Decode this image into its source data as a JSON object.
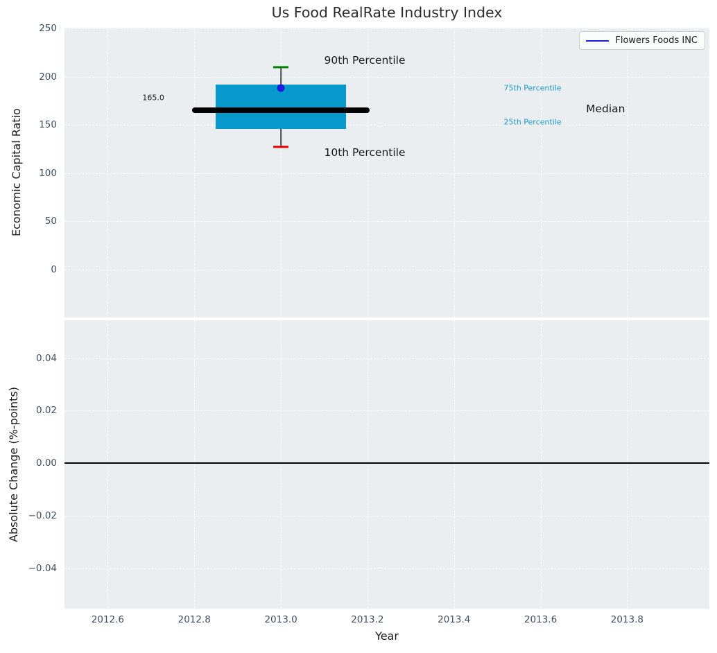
{
  "colors": {
    "axes_background": "#ebeef0",
    "grid": "#ffffff",
    "box_fill": "#0899cc",
    "percentile_label": "#1e9ac8",
    "series_blue": "#1c1ce0",
    "whisker": "#4d4d4d",
    "cap_90th": "#008000",
    "cap_10th": "#e60000",
    "median_line": "#000000",
    "zero_line": "#000000",
    "tick_label": "#3f4d61",
    "text": "#1a1a1a",
    "title": "#2b2b2b"
  },
  "chart_data": [
    {
      "type": "boxplot",
      "title": "Us Food RealRate Industry Index",
      "ylabel": "Economic Capital Ratio",
      "xlim": [
        2012.5,
        2013.99
      ],
      "ylim": [
        -50,
        251
      ],
      "grid": true,
      "yticks": [
        {
          "value": 0,
          "label": "0"
        },
        {
          "value": 50,
          "label": "50"
        },
        {
          "value": 100,
          "label": "100"
        },
        {
          "value": 150,
          "label": "150"
        },
        {
          "value": 200,
          "label": "200"
        },
        {
          "value": 250,
          "label": "250"
        }
      ],
      "legend": {
        "position": "upper right",
        "entries": [
          {
            "label": "Flowers Foods INC",
            "color": "#1c1ce0",
            "style": "line"
          }
        ]
      },
      "box": {
        "x": 2013.0,
        "p10": 127,
        "p25": 146,
        "median": 165.0,
        "p75": 192,
        "p90": 210,
        "median_label": "165.0",
        "box_halfwidth_years": 0.15,
        "median_halfwidth_years": 0.205
      },
      "points": [
        {
          "series": "Flowers Foods INC",
          "x": 2013.0,
          "y": 188
        }
      ],
      "annotations": [
        {
          "id": "annotation-90th-percentile",
          "text": "90th Percentile",
          "x": 2013.1,
          "y": 217,
          "color": "#1a1a1a",
          "size": 15.5
        },
        {
          "id": "annotation-10th-percentile",
          "text": "10th Percentile",
          "x": 2013.1,
          "y": 121.5,
          "color": "#1a1a1a",
          "size": 15.5
        },
        {
          "id": "annotation-75th-percentile",
          "text": "75th Percentile",
          "x": 2013.515,
          "y": 188.5,
          "color": "#1e9ac8",
          "size": 11
        },
        {
          "id": "annotation-25th-percentile",
          "text": "25th Percentile",
          "x": 2013.515,
          "y": 153,
          "color": "#1e9ac8",
          "size": 11
        },
        {
          "id": "annotation-median",
          "text": "Median",
          "x": 2013.705,
          "y": 166.5,
          "color": "#1a1a1a",
          "size": 15.5
        },
        {
          "id": "annotation-median-value",
          "text": "165.0",
          "x": 2012.68,
          "y": 178.5,
          "color": "#1a1a1a",
          "size": 11
        }
      ]
    },
    {
      "type": "line",
      "ylabel": "Absolute Change (%-points)",
      "xlabel": "Year",
      "xlim": [
        2012.5,
        2013.99
      ],
      "ylim": [
        -0.0554,
        0.0544
      ],
      "grid": true,
      "yticks": [
        {
          "value": 0.04,
          "label": "0.04"
        },
        {
          "value": 0.02,
          "label": "0.02"
        },
        {
          "value": 0.0,
          "label": "0.00"
        },
        {
          "value": -0.02,
          "label": "−0.02"
        },
        {
          "value": -0.04,
          "label": "−0.04"
        }
      ],
      "xticks": [
        {
          "value": 2012.6,
          "label": "2012.6"
        },
        {
          "value": 2012.8,
          "label": "2012.8"
        },
        {
          "value": 2013.0,
          "label": "2013.0"
        },
        {
          "value": 2013.2,
          "label": "2013.2"
        },
        {
          "value": 2013.4,
          "label": "2013.4"
        },
        {
          "value": 2013.6,
          "label": "2013.6"
        },
        {
          "value": 2013.8,
          "label": "2013.8"
        }
      ],
      "zero_line": {
        "y": 0.0,
        "color": "#000000"
      }
    }
  ]
}
